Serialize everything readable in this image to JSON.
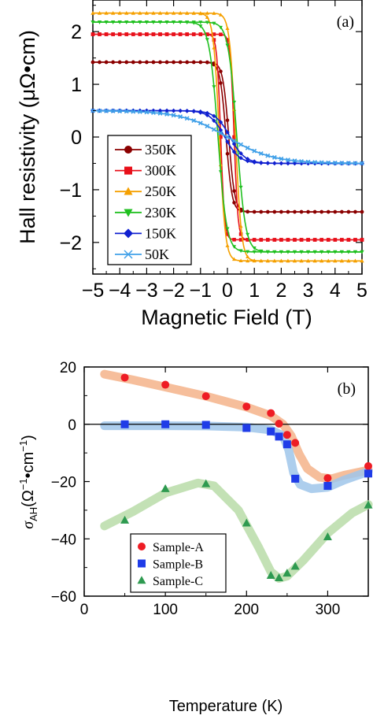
{
  "chart_data": [
    {
      "type": "line",
      "panel_label": "(a)",
      "xlabel": "Magnetic Field (T)",
      "ylabel": "Hall resistivity (μΩ•cm)",
      "xlim": [
        -5,
        5
      ],
      "ylim": [
        -2.6,
        2.6
      ],
      "xticks": [
        -5,
        -4,
        -3,
        -2,
        -1,
        0,
        1,
        2,
        3,
        4,
        5
      ],
      "yticks": [
        -2,
        -1,
        0,
        1,
        2
      ],
      "legend_position": "bottom-left",
      "grid": false,
      "series": [
        {
          "name": "350K",
          "color": "#8b0000",
          "marker": "circle",
          "sat": 1.42,
          "coercive": 0.05,
          "width": 0.22,
          "slope": 0.0
        },
        {
          "name": "300K",
          "color": "#e8101a",
          "marker": "square",
          "sat": 1.95,
          "coercive": 0.25,
          "width": 0.14,
          "slope": 0.0
        },
        {
          "name": "250K",
          "color": "#f5a000",
          "marker": "triangle",
          "sat": 2.35,
          "coercive": 0.3,
          "width": 0.22,
          "slope": 0.0
        },
        {
          "name": "230K",
          "color": "#20c020",
          "marker": "triangle-down",
          "sat": 2.18,
          "coercive": 0.35,
          "width": 0.32,
          "slope": 0.0
        },
        {
          "name": "150K",
          "color": "#1020d0",
          "marker": "diamond",
          "sat": 0.5,
          "coercive": 0.1,
          "width": 0.55,
          "slope": 0.0
        },
        {
          "name": "50K",
          "color": "#40a0e8",
          "marker": "x",
          "sat": 0.5,
          "coercive": 0.0,
          "width": 1.7,
          "slope": 0.0
        }
      ]
    },
    {
      "type": "scatter",
      "panel_label": "(b)",
      "xlabel": "Temperature (K)",
      "ylabel_main": "σ",
      "ylabel_sub": "AH",
      "ylabel_units": "(Ω",
      "ylabel_sup1": "−1",
      "ylabel_mid": "•cm",
      "ylabel_sup2": "−1",
      "ylabel_end": ")",
      "xlim": [
        0,
        350
      ],
      "ylim": [
        -60,
        20
      ],
      "xticks": [
        0,
        100,
        200,
        300
      ],
      "yticks": [
        -60,
        -40,
        -20,
        0,
        20
      ],
      "legend_position": "bottom-center",
      "zero_line": true,
      "series": [
        {
          "name": "Sample-A",
          "color": "#ee1c24",
          "marker": "circle",
          "trend_color": "#f4b38a",
          "x": [
            50,
            100,
            150,
            200,
            230,
            240,
            250,
            260,
            300,
            350
          ],
          "y": [
            16.3,
            13.8,
            9.8,
            6.2,
            3.9,
            0.2,
            -3.7,
            -6.5,
            -18.8,
            -14.6
          ],
          "trend_x": [
            25,
            60,
            100,
            150,
            200,
            230,
            245,
            255,
            265,
            275,
            290,
            305,
            320,
            350
          ],
          "trend_y": [
            17.5,
            15.5,
            13.0,
            9.8,
            6.0,
            3.0,
            0.0,
            -4.0,
            -10.5,
            -15.5,
            -18.5,
            -19.0,
            -17.8,
            -16.0
          ]
        },
        {
          "name": "Sample-B",
          "color": "#1f3ce8",
          "marker": "square",
          "trend_color": "#9fc6ea",
          "x": [
            50,
            100,
            150,
            200,
            230,
            240,
            250,
            260,
            300,
            350
          ],
          "y": [
            0.0,
            0.0,
            -0.2,
            -1.3,
            -2.5,
            -4.3,
            -7.0,
            -19.0,
            -21.5,
            -17.2
          ],
          "trend_x": [
            25,
            60,
            100,
            150,
            200,
            230,
            245,
            252,
            258,
            266,
            280,
            300,
            320,
            350
          ],
          "trend_y": [
            -0.5,
            -0.5,
            -0.5,
            -0.6,
            -1.0,
            -2.0,
            -4.0,
            -9.0,
            -17.0,
            -21.0,
            -22.5,
            -22.0,
            -19.5,
            -16.5
          ]
        },
        {
          "name": "Sample-C",
          "color": "#2e9a50",
          "marker": "triangle",
          "trend_color": "#b9dca8",
          "x": [
            50,
            100,
            150,
            200,
            230,
            240,
            250,
            260,
            300,
            350
          ],
          "y": [
            -33.5,
            -22.5,
            -20.8,
            -34.5,
            -52.8,
            -53.6,
            -52.0,
            -49.6,
            -39.3,
            -28.2
          ],
          "trend_x": [
            25,
            60,
            100,
            140,
            160,
            190,
            215,
            230,
            240,
            250,
            270,
            300,
            330,
            350
          ],
          "trend_y": [
            -35.5,
            -30.5,
            -24.0,
            -20.5,
            -21.5,
            -30.0,
            -43.0,
            -51.5,
            -53.8,
            -53.0,
            -47.5,
            -38.0,
            -31.0,
            -28.0
          ]
        }
      ]
    }
  ]
}
